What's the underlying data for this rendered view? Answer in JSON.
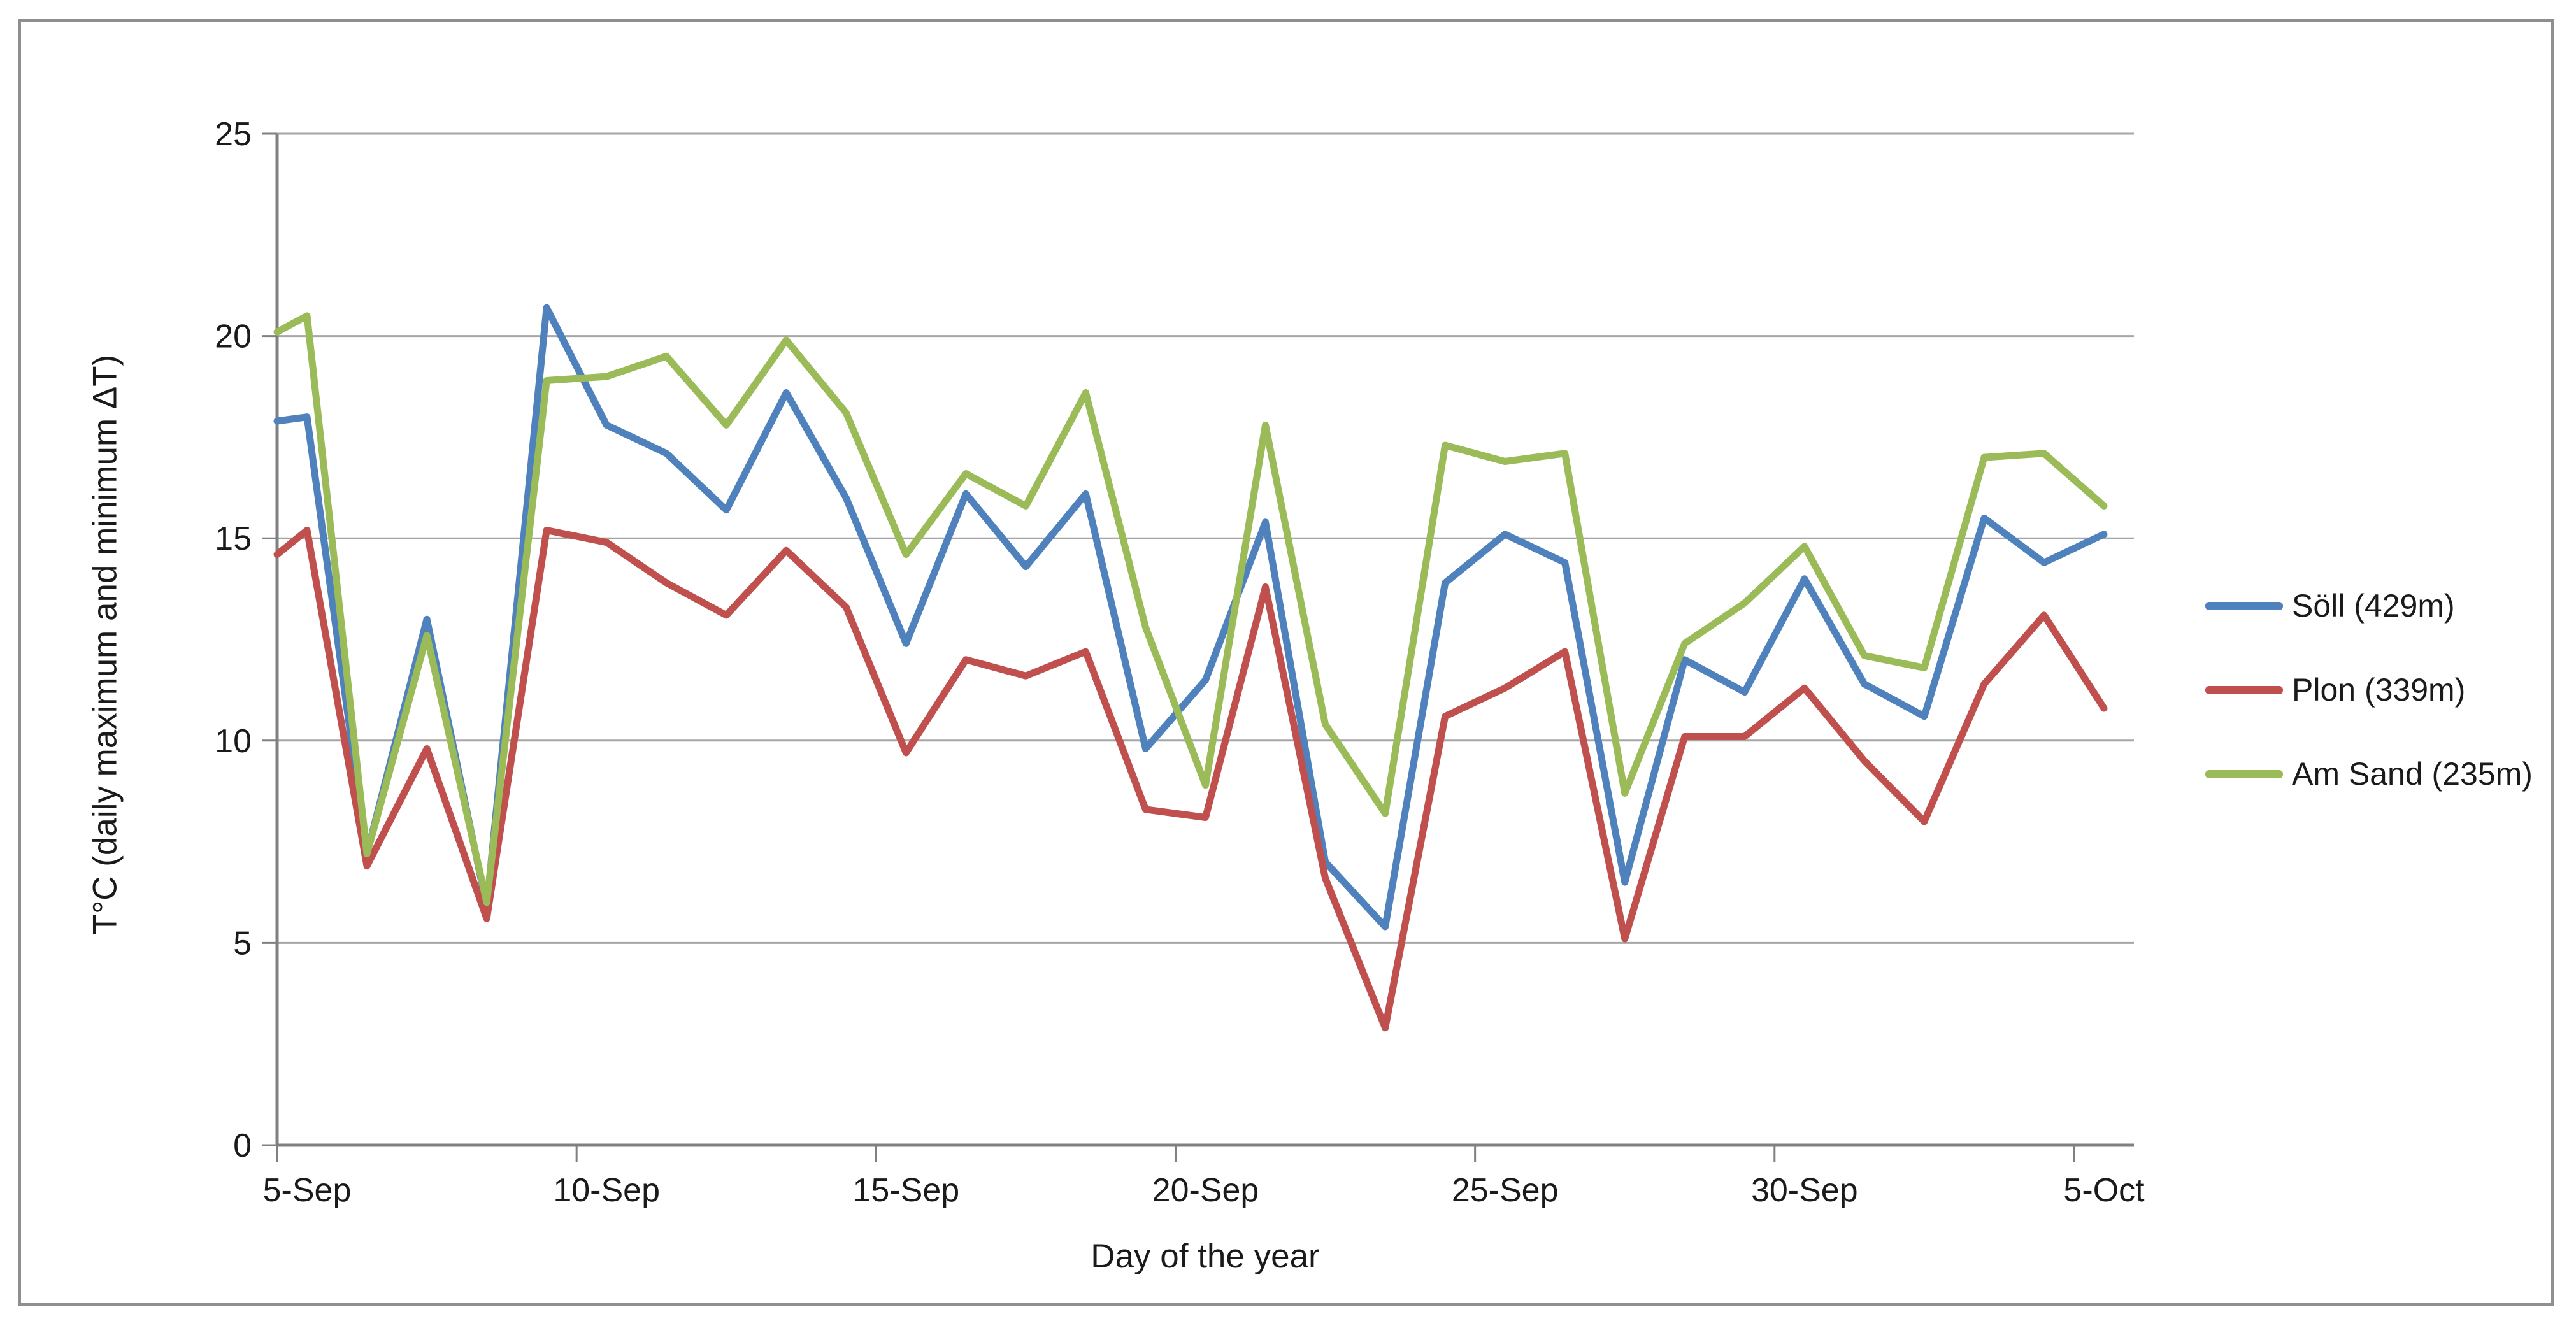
{
  "frame": {
    "border_color": "#8f8f8f",
    "background": "#ffffff"
  },
  "chart_data": {
    "type": "line",
    "title": "",
    "xlabel": "Day of the year",
    "ylabel": "T°C (daily maximum and minimum ΔT)",
    "ylim": [
      0,
      25
    ],
    "yticks": [
      0,
      5,
      10,
      15,
      20,
      25
    ],
    "xticklabels": [
      "5-Sep",
      "10-Sep",
      "15-Sep",
      "20-Sep",
      "25-Sep",
      "30-Sep",
      "5-Oct"
    ],
    "x_tick_label_days_per_step": 5,
    "grid": "horizontal",
    "gridline_color": "#a6a6a6",
    "axis_color": "#808080",
    "legend_position": "right",
    "categories": [
      "5-Sep",
      "6-Sep",
      "7-Sep",
      "8-Sep",
      "9-Sep",
      "10-Sep",
      "11-Sep",
      "12-Sep",
      "13-Sep",
      "14-Sep",
      "15-Sep",
      "16-Sep",
      "17-Sep",
      "18-Sep",
      "19-Sep",
      "20-Sep",
      "21-Sep",
      "22-Sep",
      "23-Sep",
      "24-Sep",
      "25-Sep",
      "26-Sep",
      "27-Sep",
      "28-Sep",
      "29-Sep",
      "30-Sep",
      "1-Oct",
      "2-Oct",
      "3-Oct",
      "4-Oct",
      "5-Oct"
    ],
    "series": [
      {
        "name": "Söll  (429m)",
        "color": "#4F81BD",
        "axis_edge_value": 17.9,
        "values": [
          18.0,
          7.2,
          13.0,
          5.9,
          20.7,
          17.8,
          17.1,
          15.7,
          18.6,
          16.0,
          12.4,
          16.1,
          14.3,
          16.1,
          9.8,
          11.5,
          15.4,
          7.0,
          5.4,
          13.9,
          15.1,
          14.4,
          6.5,
          12.0,
          11.2,
          14.0,
          11.4,
          10.6,
          15.5,
          14.4,
          15.1
        ]
      },
      {
        "name": "Plon (339m)",
        "color": "#C0504D",
        "axis_edge_value": 14.6,
        "values": [
          15.2,
          6.9,
          9.8,
          5.6,
          15.2,
          14.9,
          13.9,
          13.1,
          14.7,
          13.3,
          9.7,
          12.0,
          11.6,
          12.2,
          8.3,
          8.1,
          13.8,
          6.6,
          2.9,
          10.6,
          11.3,
          12.2,
          5.1,
          10.1,
          10.1,
          11.3,
          9.5,
          8.0,
          11.4,
          13.1,
          10.8
        ]
      },
      {
        "name": "Am Sand (235m)",
        "color": "#9BBB59",
        "axis_edge_value": 20.1,
        "values": [
          20.5,
          7.2,
          12.6,
          6.0,
          18.9,
          19.0,
          19.5,
          17.8,
          19.9,
          18.1,
          14.6,
          16.6,
          15.8,
          18.6,
          12.8,
          8.9,
          17.8,
          10.4,
          8.2,
          17.3,
          16.9,
          17.1,
          8.7,
          12.4,
          13.4,
          14.8,
          12.1,
          11.8,
          17.0,
          17.1,
          15.8
        ]
      }
    ]
  }
}
